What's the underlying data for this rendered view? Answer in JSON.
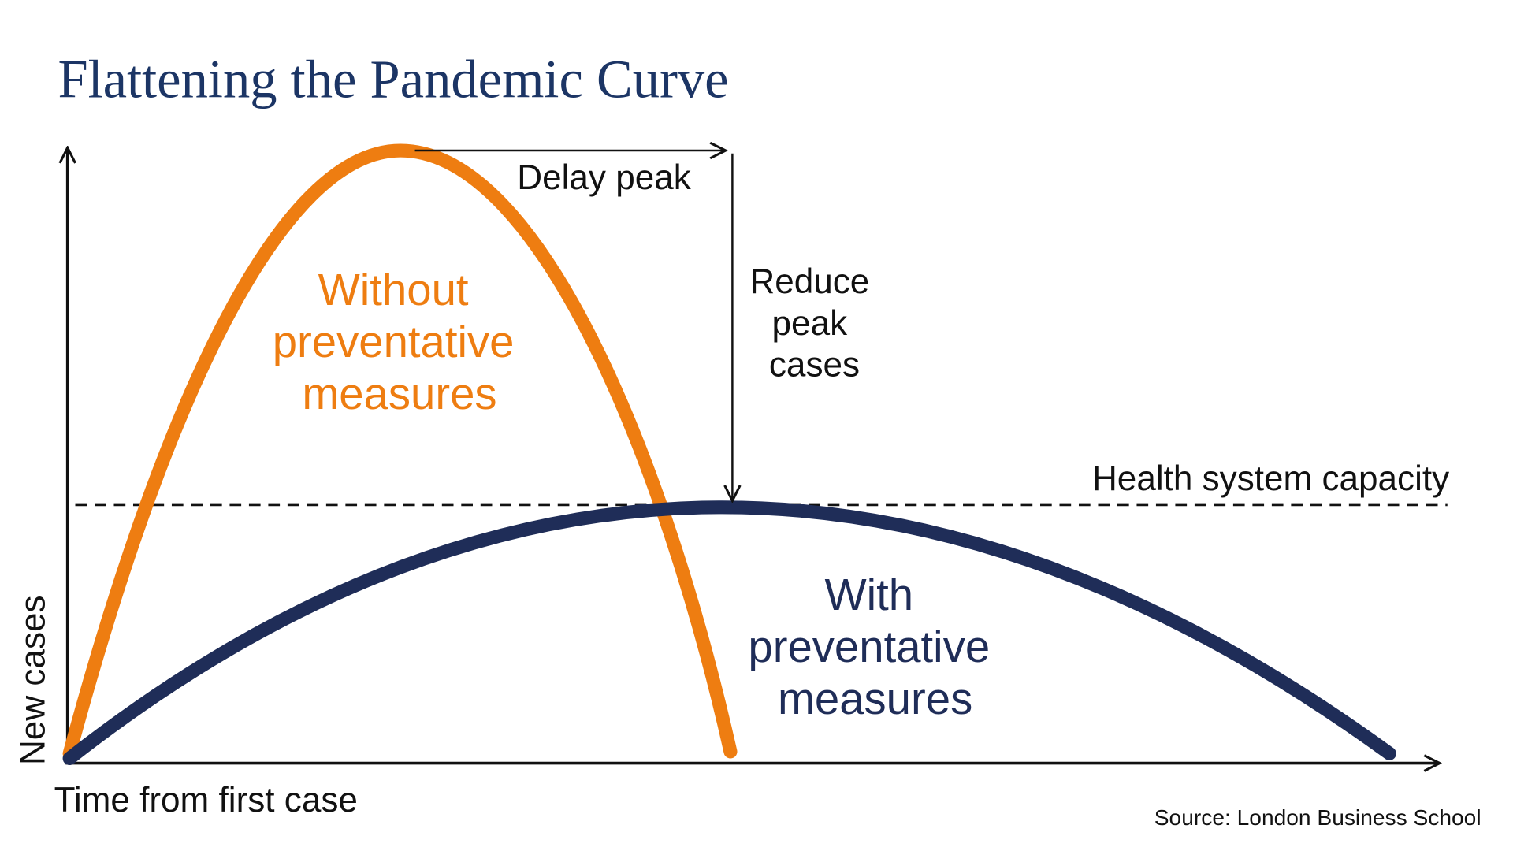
{
  "title": "Flattening the Pandemic Curve",
  "axes": {
    "y_label": "New cases",
    "x_label": "Time from first case"
  },
  "annotations": {
    "delay_peak": "Delay peak",
    "reduce_peak": [
      "Reduce",
      "peak",
      "cases"
    ],
    "capacity": "Health system capacity"
  },
  "curves": [
    {
      "label": [
        "Without",
        "preventative",
        "measures"
      ],
      "color": "#ee7d11"
    },
    {
      "label": [
        "With",
        "preventative",
        "measures"
      ],
      "color": "#1f2d58"
    }
  ],
  "source": "Source: London Business School"
}
